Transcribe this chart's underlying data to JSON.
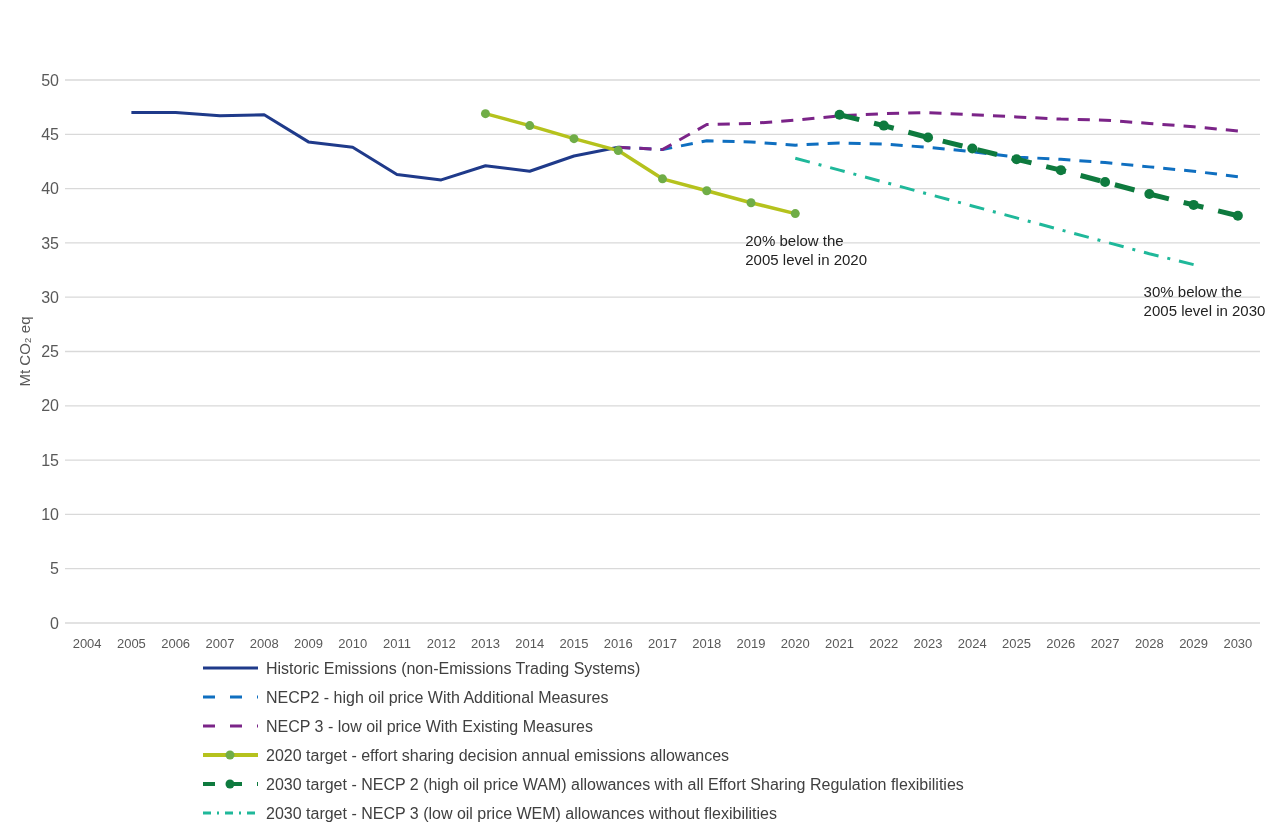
{
  "chart_data": {
    "type": "line",
    "ylabel": "Mt CO₂ eq",
    "categories": [
      "2004",
      "2005",
      "2006",
      "2007",
      "2008",
      "2009",
      "2010",
      "2011",
      "2012",
      "2013",
      "2014",
      "2015",
      "2016",
      "2017",
      "2018",
      "2019",
      "2020",
      "2021",
      "2022",
      "2023",
      "2024",
      "2025",
      "2026",
      "2027",
      "2028",
      "2029",
      "2030"
    ],
    "ylim": [
      0,
      50
    ],
    "yticks": [
      0,
      5,
      10,
      15,
      20,
      25,
      30,
      35,
      40,
      45,
      50
    ],
    "grid": "y",
    "legend": "bottom",
    "series": [
      {
        "name": "Historic Emissions (non-Emissions Trading Systems)",
        "color": "#1f3a8a",
        "line_style": "solid",
        "marker": "none",
        "values": [
          null,
          47.0,
          47.0,
          46.7,
          46.8,
          44.3,
          43.8,
          41.3,
          40.8,
          42.1,
          41.6,
          43.0,
          43.8,
          null,
          null,
          null,
          null,
          null,
          null,
          null,
          null,
          null,
          null,
          null,
          null,
          null,
          null
        ]
      },
      {
        "name": "NECP2 - high oil price With Additional Measures",
        "color": "#0f6fc0",
        "line_style": "dashed",
        "marker": "none",
        "values": [
          null,
          null,
          null,
          null,
          null,
          null,
          null,
          null,
          null,
          null,
          null,
          null,
          43.8,
          43.6,
          44.4,
          44.3,
          44.0,
          44.2,
          44.1,
          43.8,
          43.4,
          42.9,
          42.7,
          42.4,
          42.0,
          41.6,
          41.1
        ]
      },
      {
        "name": "NECP 3 - low oil price With Existing Measures",
        "color": "#7b2488",
        "line_style": "dashed",
        "marker": "none",
        "values": [
          null,
          null,
          null,
          null,
          null,
          null,
          null,
          null,
          null,
          null,
          null,
          null,
          43.8,
          43.6,
          45.9,
          46.0,
          46.3,
          46.7,
          46.9,
          47.0,
          46.8,
          46.6,
          46.4,
          46.3,
          46.0,
          45.7,
          45.3
        ]
      },
      {
        "name": "2020 target - effort sharing decision annual emissions allowances",
        "color": "#b5c21d",
        "line_style": "solid",
        "marker": "circle",
        "values": [
          null,
          null,
          null,
          null,
          null,
          null,
          null,
          null,
          null,
          46.9,
          45.8,
          44.6,
          43.5,
          40.9,
          39.8,
          38.7,
          37.7,
          null,
          null,
          null,
          null,
          null,
          null,
          null,
          null,
          null,
          null
        ]
      },
      {
        "name": "2030 target - NECP 2 (high oil price WAM) allowances with all Effort Sharing Regulation flexibilities",
        "color": "#0e7a3e",
        "line_style": "dashed",
        "marker": "circle",
        "values": [
          null,
          null,
          null,
          null,
          null,
          null,
          null,
          null,
          null,
          null,
          null,
          null,
          null,
          null,
          null,
          null,
          null,
          46.8,
          45.8,
          44.7,
          43.7,
          42.7,
          41.7,
          40.6,
          39.5,
          38.5,
          37.5
        ]
      },
      {
        "name": "2030 target - NECP 3 (low oil price WEM) allowances without flexibilities",
        "color": "#1fb89a",
        "line_style": "dotted",
        "marker": "none",
        "values": [
          null,
          null,
          null,
          null,
          null,
          null,
          null,
          null,
          null,
          null,
          null,
          null,
          null,
          null,
          null,
          null,
          42.8,
          41.7,
          40.6,
          39.5,
          38.4,
          37.3,
          36.2,
          35.1,
          34.0,
          33.0,
          null
        ]
      }
    ],
    "annotations": [
      {
        "text": "20% below the\n2005 level in 2020",
        "x": "2020",
        "y": 37.7
      },
      {
        "text": "30% below the\n2005 level in 2030",
        "x": "2029",
        "y": 33.0
      }
    ]
  }
}
